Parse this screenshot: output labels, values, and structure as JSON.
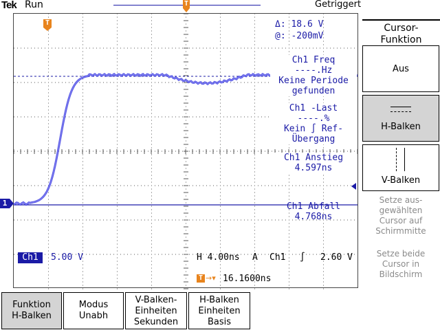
{
  "header": {
    "brand": "Tek",
    "run_state": "Run",
    "trigger_state": "Getriggert"
  },
  "markers": {
    "trigger_position": "T",
    "channel_ground": "1"
  },
  "cursor_readout": {
    "delta": "Δ:   18.6 V",
    "at": "@:  -200mV"
  },
  "measurements": [
    {
      "name": "Ch1 Freq",
      "value": "----.Hz",
      "note": "Keine Periode gefunden"
    },
    {
      "name": "Ch1 -Last",
      "value": "----.%",
      "note": "Kein ∫ Ref-Übergang"
    },
    {
      "name": "Ch1 Anstieg",
      "value": "4.597ns",
      "note": ""
    },
    {
      "name": "Ch1 Abfall",
      "value": "4.768ns",
      "note": ""
    }
  ],
  "meas_lines": {
    "freq_name": "Ch1 Freq",
    "freq_value": "----.Hz",
    "freq_note1": "Keine Periode",
    "freq_note2": "gefunden",
    "duty_name": "Ch1 -Last",
    "duty_value": "----.%",
    "duty_note1": "Kein ∫ Ref-",
    "duty_note2": "Übergang",
    "rise_name": "Ch1 Anstieg",
    "rise_value": "4.597ns",
    "fall_name": "Ch1 Abfall",
    "fall_value": "4.768ns"
  },
  "status_bar": {
    "channel": "Ch1",
    "volts_div": "5.00 V",
    "timebase": "H 4.00ns",
    "trigger_mode": "A",
    "trigger_source": "Ch1",
    "trigger_slope": "∫",
    "trigger_level": "2.60 V",
    "trigger_offset": "16.1600ns"
  },
  "side_menu": {
    "title_line1": "Cursor-",
    "title_line2": "Funktion",
    "off": "Aus",
    "h_bars": "H-Balken",
    "v_bars": "V-Balken",
    "hint1_l1": "Setze aus-",
    "hint1_l2": "gewählten",
    "hint1_l3": "Cursor auf",
    "hint1_l4": "Schirmmitte",
    "hint2_l1": "Setze beide",
    "hint2_l2": "Cursor in",
    "hint2_l3": "Bildschirm"
  },
  "bottom_menu": {
    "function_l1": "Funktion",
    "function_l2": "H-Balken",
    "mode_l1": "Modus",
    "mode_l2": "Unabh",
    "vunits_l1": "V-Balken-",
    "vunits_l2": "Einheiten",
    "vunits_l3": "Sekunden",
    "hunits_l1": "H-Balken",
    "hunits_l2": "Einheiten",
    "hunits_l3": "Basis"
  },
  "colors": {
    "trace": "#2a2ae0",
    "text": "#1a1aa6",
    "marker": "#e8841d",
    "selected": "#d4d4d4"
  }
}
